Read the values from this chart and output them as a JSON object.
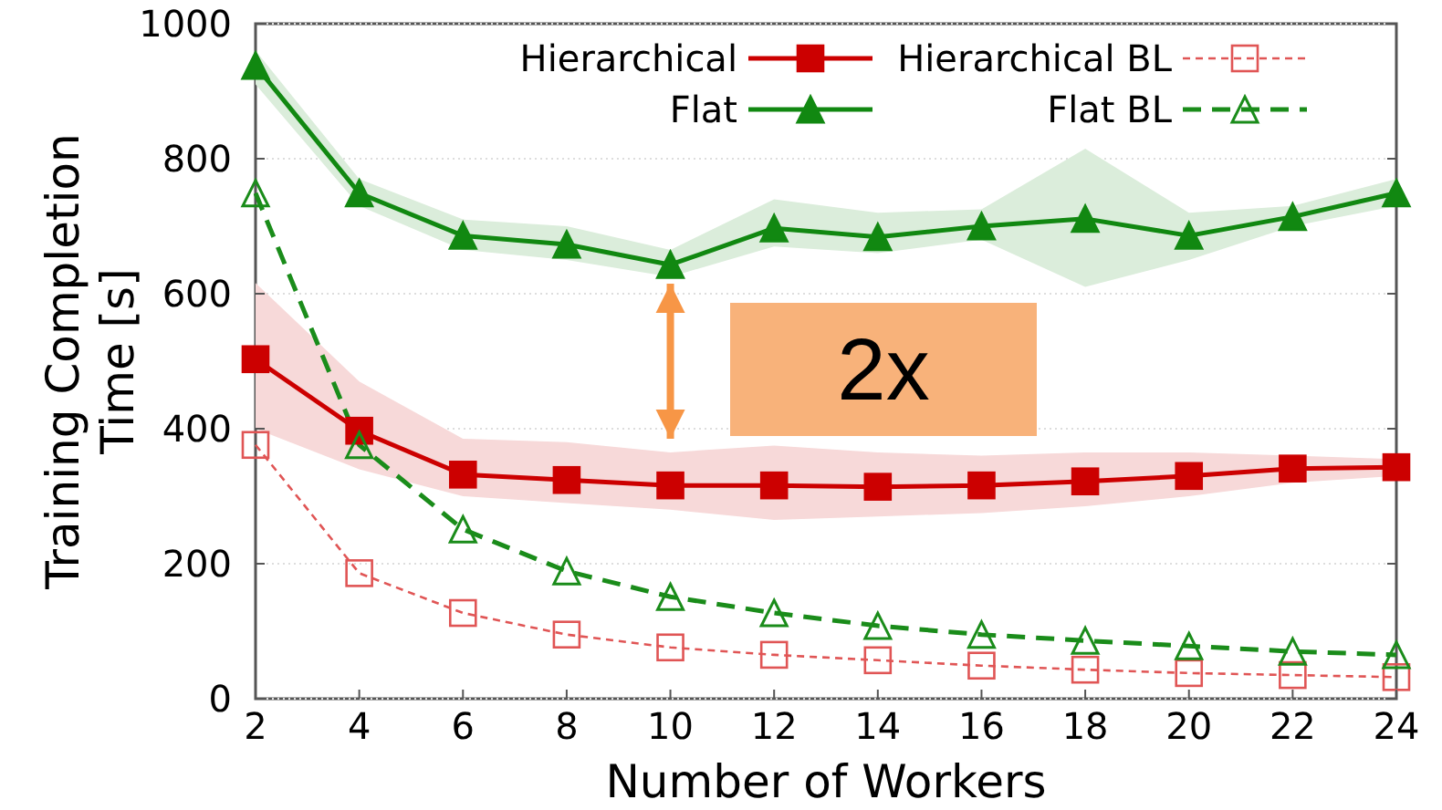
{
  "chart_data": {
    "type": "line",
    "xlabel": "Number of Workers",
    "ylabel": "Training Completion\nTime [s]",
    "x": [
      2,
      4,
      6,
      8,
      10,
      12,
      14,
      16,
      18,
      20,
      22,
      24
    ],
    "xlim": [
      2,
      24
    ],
    "xticks": [
      2,
      4,
      6,
      8,
      10,
      12,
      14,
      16,
      18,
      20,
      22,
      24
    ],
    "ylim": [
      0,
      1000
    ],
    "yticks": [
      0,
      200,
      400,
      600,
      800,
      1000
    ],
    "grid": "y",
    "legend": "top",
    "series": [
      {
        "name": "Hierarchical",
        "color": "#cc0000",
        "marker": "square",
        "line_style": "solid",
        "values": [
          503,
          397,
          332,
          324,
          316,
          316,
          314,
          316,
          322,
          330,
          341,
          343
        ],
        "lower": [
          400,
          340,
          300,
          290,
          280,
          265,
          270,
          275,
          285,
          300,
          320,
          330
        ],
        "upper": [
          616,
          470,
          385,
          380,
          365,
          375,
          365,
          360,
          365,
          365,
          360,
          355
        ]
      },
      {
        "name": "Flat",
        "color": "#118811",
        "marker": "triangle",
        "line_style": "solid",
        "values": [
          938,
          749,
          686,
          673,
          643,
          697,
          684,
          700,
          711,
          686,
          714,
          749
        ],
        "lower": [
          910,
          730,
          665,
          650,
          625,
          670,
          660,
          680,
          610,
          650,
          700,
          730
        ],
        "upper": [
          960,
          770,
          710,
          700,
          665,
          740,
          720,
          725,
          815,
          720,
          730,
          770
        ]
      },
      {
        "name": "Hierarchical BL",
        "color": "#e05555",
        "marker": "square",
        "line_style": "dotted",
        "values": [
          376,
          186,
          127,
          95,
          76,
          65,
          57,
          49,
          43,
          38,
          35,
          32
        ]
      },
      {
        "name": "Flat BL",
        "color": "#1a8c1a",
        "marker": "triangle",
        "line_style": "dashed",
        "values": [
          749,
          376,
          251,
          189,
          151,
          127,
          108,
          95,
          86,
          78,
          70,
          65
        ]
      }
    ],
    "annotations": [
      "2x"
    ]
  }
}
